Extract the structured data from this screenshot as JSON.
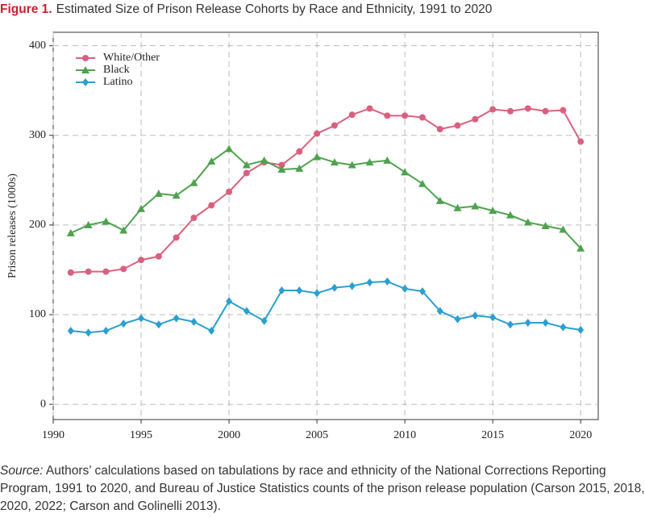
{
  "chart_data": {
    "type": "line",
    "figure_label": "Figure 1.",
    "title": "Estimated Size of Prison Release Cohorts by Race and Ethnicity, 1991 to 2020",
    "y_label": "Prison releases (1000s)",
    "source_label": "Source:",
    "source": "Authors’ calculations based on tabulations by race and ethnicity of the National Corrections Reporting Program, 1991 to 2020, and Bureau of Justice Statistics counts of the prison release population (Carson 2015, 2018, 2020, 2022; Carson and Golinelli 2013).",
    "x": [
      1991,
      1992,
      1993,
      1994,
      1995,
      1996,
      1997,
      1998,
      1999,
      2000,
      2001,
      2002,
      2003,
      2004,
      2005,
      2006,
      2007,
      2008,
      2009,
      2010,
      2011,
      2012,
      2013,
      2014,
      2015,
      2016,
      2017,
      2018,
      2019,
      2020
    ],
    "series": [
      {
        "name": "White/Other",
        "color": "#d9607e",
        "marker": "circle",
        "values": [
          147,
          148,
          148,
          151,
          161,
          165,
          186,
          208,
          222,
          237,
          258,
          270,
          267,
          282,
          302,
          311,
          323,
          330,
          322,
          322,
          320,
          307,
          311,
          318,
          329,
          327,
          330,
          327,
          328,
          293
        ]
      },
      {
        "name": "Black",
        "color": "#4ea24e",
        "marker": "triangle",
        "values": [
          191,
          200,
          204,
          194,
          218,
          235,
          233,
          247,
          271,
          285,
          267,
          272,
          262,
          263,
          276,
          270,
          267,
          270,
          272,
          259,
          246,
          227,
          219,
          221,
          216,
          211,
          203,
          199,
          195,
          174
        ]
      },
      {
        "name": "Latino",
        "color": "#2a9fd0",
        "marker": "diamond",
        "values": [
          82,
          80,
          82,
          90,
          96,
          89,
          96,
          92,
          82,
          115,
          104,
          93,
          127,
          127,
          124,
          130,
          132,
          136,
          137,
          129,
          126,
          104,
          95,
          99,
          97,
          89,
          91,
          91,
          86,
          83
        ]
      }
    ],
    "xlim": [
      1990,
      2021
    ],
    "xticks": [
      1990,
      1995,
      2000,
      2005,
      2010,
      2015,
      2020
    ],
    "ylim": [
      -17,
      415
    ],
    "yticks": [
      0,
      100,
      200,
      300,
      400
    ],
    "grid": true,
    "legend": "upper-left"
  }
}
